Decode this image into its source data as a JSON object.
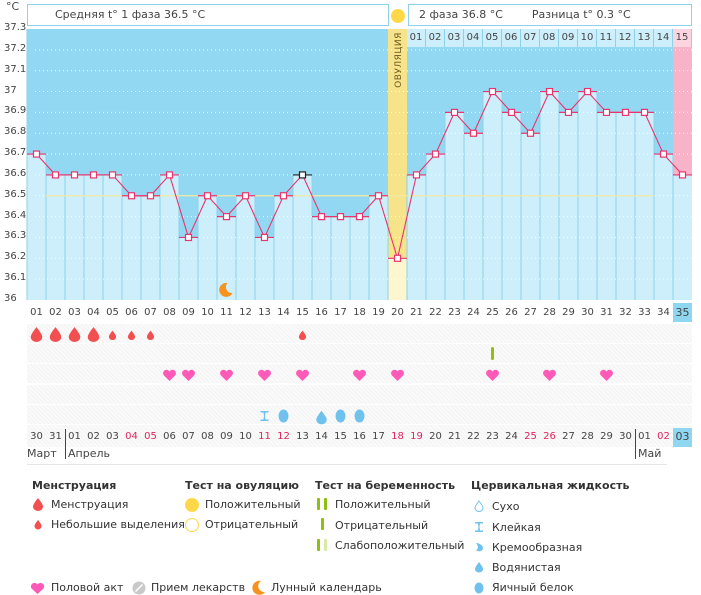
{
  "header": {
    "unit_label": "°C",
    "phase1_label": "Средняя t° 1 фаза 36.5 °C",
    "phase2_label": "2 фаза 36.8 °C",
    "diff_label": "Разница t° 0.3 °C",
    "ovulation_label": "ОВУЛЯЦИЯ",
    "luteal_days": [
      "01",
      "02",
      "03",
      "04",
      "05",
      "06",
      "07",
      "08",
      "09",
      "10",
      "11",
      "12",
      "13",
      "14",
      "15"
    ]
  },
  "chart_data": {
    "type": "line",
    "title": "",
    "xlabel": "",
    "ylabel": "°C",
    "ylim": [
      36.0,
      37.3
    ],
    "yticks": [
      "37.3",
      "37.2",
      "37.1",
      "37",
      "36.9",
      "36.8",
      "36.7",
      "36.6",
      "36.5",
      "36.4",
      "36.3",
      "36.2",
      "36.1",
      "36"
    ],
    "x": [
      "01",
      "02",
      "03",
      "04",
      "05",
      "06",
      "07",
      "08",
      "09",
      "10",
      "11",
      "12",
      "13",
      "14",
      "15",
      "16",
      "17",
      "18",
      "19",
      "20",
      "21",
      "22",
      "23",
      "24",
      "25",
      "26",
      "27",
      "28",
      "29",
      "30",
      "31",
      "32",
      "33",
      "34",
      "35"
    ],
    "series": [
      {
        "name": "BBT",
        "color": "#e8356d",
        "values": [
          36.7,
          36.6,
          36.6,
          36.6,
          36.6,
          36.5,
          36.5,
          36.6,
          36.3,
          36.5,
          36.4,
          36.5,
          36.3,
          36.5,
          36.6,
          36.4,
          36.4,
          36.4,
          36.5,
          36.2,
          36.6,
          36.7,
          36.9,
          36.8,
          37.0,
          36.9,
          36.8,
          37.0,
          36.9,
          37.0,
          36.9,
          36.9,
          36.9,
          36.7,
          36.6
        ]
      }
    ],
    "highlighted_point_day": "15",
    "coverline": 36.5,
    "ovulation_day": "20",
    "current_day": "35",
    "grid": true
  },
  "calendar": {
    "dates": [
      "30",
      "31",
      "01",
      "02",
      "03",
      "04",
      "05",
      "06",
      "07",
      "08",
      "09",
      "10",
      "11",
      "12",
      "13",
      "14",
      "15",
      "16",
      "17",
      "18",
      "19",
      "20",
      "21",
      "22",
      "23",
      "24",
      "25",
      "26",
      "27",
      "28",
      "29",
      "30",
      "01",
      "02",
      "03"
    ],
    "weekend_indices": [
      5,
      6,
      12,
      13,
      19,
      20,
      26,
      27,
      33
    ],
    "months": [
      {
        "label": "Март",
        "start_index": 0
      },
      {
        "label": "Апрель",
        "start_index": 2
      },
      {
        "label": "Май",
        "start_index": 32
      }
    ]
  },
  "symbols": {
    "menstruation": [
      {
        "day": 1,
        "kind": "heavy"
      },
      {
        "day": 2,
        "kind": "heavy"
      },
      {
        "day": 3,
        "kind": "heavy"
      },
      {
        "day": 4,
        "kind": "heavy"
      },
      {
        "day": 5,
        "kind": "light"
      },
      {
        "day": 6,
        "kind": "light"
      },
      {
        "day": 7,
        "kind": "light"
      },
      {
        "day": 15,
        "kind": "light"
      }
    ],
    "pregnancy_test": [
      {
        "day": 25,
        "kind": "negative"
      }
    ],
    "intercourse": [
      8,
      9,
      11,
      13,
      15,
      18,
      20,
      25,
      28,
      31
    ],
    "cervical_fluid": [
      {
        "day": 13,
        "kind": "sticky"
      },
      {
        "day": 14,
        "kind": "eggwhite"
      },
      {
        "day": 16,
        "kind": "watery"
      },
      {
        "day": 17,
        "kind": "eggwhite"
      },
      {
        "day": 18,
        "kind": "eggwhite"
      }
    ],
    "moon": [
      11
    ]
  },
  "legend": {
    "menstruation": {
      "title": "Менструация",
      "items": [
        "Менструация",
        "Небольшие выделения"
      ]
    },
    "ovulation_test": {
      "title": "Тест на овуляцию",
      "items": [
        "Положительный",
        "Отрицательный"
      ]
    },
    "pregnancy_test": {
      "title": "Тест на беременность",
      "items": [
        "Положительный",
        "Отрицательный",
        "Слабоположительный"
      ]
    },
    "cervical_fluid": {
      "title": "Цервикальная жидкость",
      "items": [
        "Сухо",
        "Клейкая",
        "Кремообразная",
        "Водянистая",
        "Яичный белок"
      ]
    },
    "other": [
      "Половой акт",
      "Прием лекарств",
      "Лунный календарь"
    ]
  },
  "colors": {
    "sky": "#93d8f2",
    "bar": "#cdeefb",
    "ovulation": "#f7e48a",
    "current": "#f9b3c9",
    "line": "#e8356d",
    "blood": "#f25050",
    "heart": "#ff5ab8",
    "fluid": "#6fc1ee",
    "test": "#8fbf12",
    "moon": "#f5931e",
    "sun": "#ffd84a"
  }
}
